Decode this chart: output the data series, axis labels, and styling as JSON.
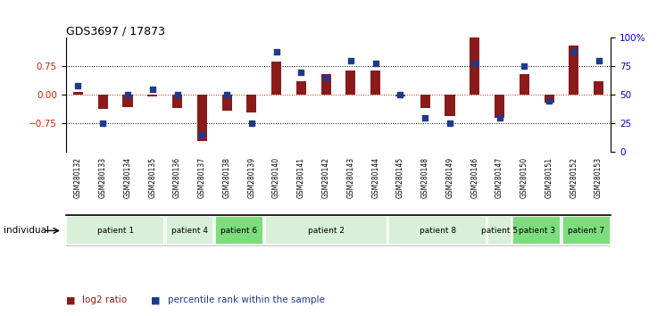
{
  "title": "GDS3697 / 17873",
  "samples": [
    "GSM280132",
    "GSM280133",
    "GSM280134",
    "GSM280135",
    "GSM280136",
    "GSM280137",
    "GSM280138",
    "GSM280139",
    "GSM280140",
    "GSM280141",
    "GSM280142",
    "GSM280143",
    "GSM280144",
    "GSM280145",
    "GSM280148",
    "GSM280149",
    "GSM280146",
    "GSM280147",
    "GSM280150",
    "GSM280151",
    "GSM280152",
    "GSM280153"
  ],
  "log2_ratio": [
    0.08,
    -0.38,
    -0.32,
    -0.05,
    -0.35,
    -1.22,
    -0.42,
    -0.47,
    0.88,
    0.35,
    0.55,
    0.65,
    0.65,
    -0.05,
    -0.35,
    -0.55,
    1.5,
    -0.6,
    0.55,
    -0.2,
    1.3,
    0.35
  ],
  "percentile": [
    58,
    25,
    50,
    55,
    50,
    15,
    50,
    25,
    88,
    70,
    65,
    80,
    78,
    50,
    30,
    25,
    78,
    30,
    75,
    45,
    88,
    80
  ],
  "patients": [
    {
      "label": "patient 1",
      "start": 0,
      "end": 3,
      "color": "#d8f0d8"
    },
    {
      "label": "patient 4",
      "start": 4,
      "end": 5,
      "color": "#d8f0d8"
    },
    {
      "label": "patient 6",
      "start": 6,
      "end": 7,
      "color": "#7ddd7d"
    },
    {
      "label": "patient 2",
      "start": 8,
      "end": 12,
      "color": "#d8f0d8"
    },
    {
      "label": "patient 8",
      "start": 13,
      "end": 16,
      "color": "#d8f0d8"
    },
    {
      "label": "patient 5",
      "start": 17,
      "end": 17,
      "color": "#d8f0d8"
    },
    {
      "label": "patient 3",
      "start": 18,
      "end": 19,
      "color": "#7ddd7d"
    },
    {
      "label": "patient 7",
      "start": 20,
      "end": 21,
      "color": "#7ddd7d"
    }
  ],
  "bar_color": "#8B1A1A",
  "dot_color": "#1E3A8A",
  "ylim_left": [
    -1.5,
    1.5
  ],
  "ylim_right": [
    0,
    100
  ],
  "yticks_left": [
    -0.75,
    0.0,
    0.75
  ],
  "yticks_right": [
    0,
    25,
    50,
    75,
    100
  ],
  "hline_values": [
    -0.75,
    0.75
  ],
  "bg_color": "#c8c8c8",
  "plot_bg": "#ffffff"
}
